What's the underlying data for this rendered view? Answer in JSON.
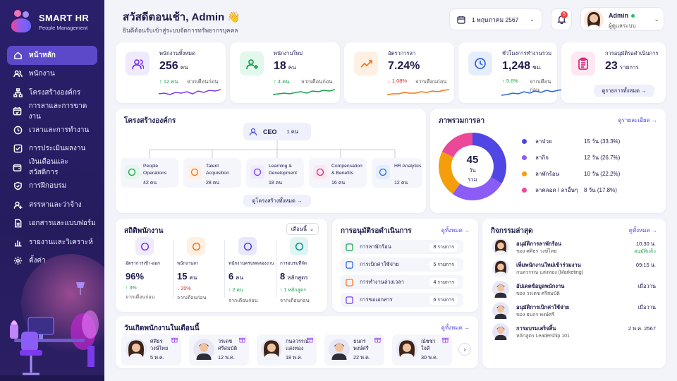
{
  "brand": {
    "name": "SMART HR",
    "subtitle": "People Management"
  },
  "nav": [
    {
      "label": "หน้าหลัก",
      "icon": "home-icon",
      "active": true
    },
    {
      "label": "พนักงาน",
      "icon": "users-icon"
    },
    {
      "label": "โครงสร้างองค์กร",
      "icon": "org-chart-icon"
    },
    {
      "label": "การลาและการขาดงาน",
      "icon": "calendar-check-icon"
    },
    {
      "label": "เวลาและการทำงาน",
      "icon": "clock-icon"
    },
    {
      "label": "การประเมินผลงาน",
      "icon": "checkbox-icon"
    },
    {
      "label": "เงินเดือนและสวัสดิการ",
      "icon": "wallet-icon"
    },
    {
      "label": "การฝึกอบรม",
      "icon": "shield-icon"
    },
    {
      "label": "สรรหาและว่าจ้าง",
      "icon": "recruit-icon"
    },
    {
      "label": "เอกสารและแบบฟอร์ม",
      "icon": "document-icon"
    },
    {
      "label": "รายงานและวิเคราะห์",
      "icon": "bar-chart-icon"
    },
    {
      "label": "ตั้งค่า",
      "icon": "gear-icon"
    }
  ],
  "header": {
    "greeting": "สวัสดีตอนเช้า, Admin 👋",
    "subtitle": "ยินดีต้อนรับเข้าสู่ระบบจัดการทรัพยากรบุคคล",
    "date": "1 พฤษภาคม 2567",
    "notif_count": "5",
    "user_name": "Admin",
    "user_role": "ผู้ดูแลระบบ"
  },
  "stats": [
    {
      "title": "พนักงานทั้งหมด",
      "value": "256",
      "unit": "คน",
      "change": "↑ 12 คน",
      "trend": "up",
      "compare": "จากเดือนก่อน",
      "color": "#7c3aed",
      "bg": "#efeafe",
      "icon": "users-icon"
    },
    {
      "title": "พนักงานใหม่",
      "value": "18",
      "unit": "คน",
      "change": "↑ 4 คน",
      "trend": "up",
      "compare": "จากเดือนก่อน",
      "color": "#16a34a",
      "bg": "#e3f7ec",
      "icon": "user-plus-icon"
    },
    {
      "title": "อัตราการลา",
      "value": "7.24%",
      "unit": "",
      "change": "↓ 1.08%",
      "trend": "down",
      "compare": "จากเดือนก่อน",
      "color": "#f97316",
      "bg": "#fff0e3",
      "icon": "trend-icon"
    },
    {
      "title": "ชั่วโมงการทำงานรวม",
      "value": "1,248",
      "unit": "ชม.",
      "change": "↑ 5.6%",
      "trend": "up",
      "compare": "จากเดือนก่อน",
      "color": "#2563eb",
      "bg": "#e6eefe",
      "icon": "clock-icon"
    },
    {
      "title": "การอนุมัติรอดำเนินการ",
      "value": "23",
      "unit": "รายการ",
      "change": "",
      "trend": "",
      "compare": "",
      "color": "#db2777",
      "bg": "#fde7f1",
      "icon": "clipboard-icon",
      "button": "ดูรายการทั้งหมด →"
    }
  ],
  "org": {
    "title": "โครงสร้างองค์กร",
    "ceo": {
      "label": "CEO",
      "count": "1 คน"
    },
    "depts": [
      {
        "name": "People Operations",
        "count": "42 คน",
        "color": "#16a34a",
        "bg": "#e3f7ec"
      },
      {
        "name": "Talent Acquisition",
        "count": "28 คน",
        "color": "#f97316",
        "bg": "#fff0e3"
      },
      {
        "name": "Learning & Development",
        "count": "18 คน",
        "color": "#7c3aed",
        "bg": "#efeafe"
      },
      {
        "name": "Compensation & Benefits",
        "count": "16 คน",
        "color": "#db2777",
        "bg": "#fde7f1"
      },
      {
        "name": "HR Analytics",
        "count": "12 คน",
        "color": "#2563eb",
        "bg": "#e6eefe"
      }
    ],
    "button": "ดูโครงสร้างทั้งหมด →"
  },
  "leave": {
    "title": "ภาพรวมการลา",
    "link": "ดูรายละเอียด →",
    "total": "45",
    "total_unit": "วัน",
    "total_label": "รวม",
    "chart_data": {
      "type": "pie",
      "donut": true,
      "categories": [
        "ลาป่วย",
        "ลากิจ",
        "ลาพักร้อน",
        "ลาคลอด / ลาอื่นๆ"
      ],
      "values": [
        15,
        12,
        10,
        8
      ],
      "percent": [
        33.3,
        26.7,
        22.2,
        17.8
      ],
      "colors": [
        "#4f46e5",
        "#8b5cf6",
        "#f59e0b",
        "#ec4899"
      ],
      "labels": [
        "15 วัน (33.3%)",
        "12 วัน (26.7%)",
        "10 วัน (22.2%)",
        "8 วัน (17.8%)"
      ]
    }
  },
  "empstats": {
    "title": "สถิติพนักงาน",
    "period": "เดือนนี้",
    "items": [
      {
        "title": "อัตราการเข้า-ออก",
        "value": "96%",
        "unit": "",
        "change": "↑ 3%",
        "trend": "up",
        "compare": "จากเดือนก่อน",
        "color": "#7c3aed",
        "bg": "#efeafe"
      },
      {
        "title": "พนักงานลา",
        "value": "15",
        "unit": "คน",
        "change": "↓ 20%",
        "trend": "down",
        "compare": "จากเดือนก่อน",
        "color": "#f97316",
        "bg": "#fff0e3"
      },
      {
        "title": "พนักงานครบทดลองงาน",
        "value": "6",
        "unit": "คน",
        "change": "↑ 2 คน",
        "trend": "up",
        "compare": "จากเดือนก่อน",
        "color": "#4f46e5",
        "bg": "#e8e8fb"
      },
      {
        "title": "การอบรมที่จัด",
        "value": "8",
        "unit": "หลักสูตร",
        "change": "↑ 1 หลักสูตร",
        "trend": "up",
        "compare": "จากเดือนก่อน",
        "color": "#0d9488",
        "bg": "#dff5f2"
      }
    ]
  },
  "approvals": {
    "title": "การอนุมัติรอดำเนินการ",
    "link": "ดูทั้งหมด →",
    "items": [
      {
        "label": "การลาพักร้อน",
        "count": "8 รายการ",
        "color": "#16a34a"
      },
      {
        "label": "การเบิกค่าใช้จ่าย",
        "count": "5 รายการ",
        "color": "#2563eb"
      },
      {
        "label": "การทำงานล่วงเวลา",
        "count": "4 รายการ",
        "color": "#f97316"
      },
      {
        "label": "การขอเอกสาร",
        "count": "6 รายการ",
        "color": "#7c3aed"
      }
    ]
  },
  "activity": {
    "title": "กิจกรรมล่าสุด",
    "link": "ดูทั้งหมด →",
    "items": [
      {
        "title": "อนุมัติการลาพักร้อน",
        "sub": "ของ ศศิธร วงษ์ไทย",
        "time": "10:30 น.",
        "status": "อนุมัติแล้ว",
        "gender": "f"
      },
      {
        "title": "เพิ่มพนักงานใหม่เข้าร่วมงาน",
        "sub": "กนลวรรณ แสงทอง (Marketing)",
        "time": "09:15 น.",
        "status": "",
        "gender": "f"
      },
      {
        "title": "อัปเดตข้อมูลพนักงาน",
        "sub": "ของ วรเดช ศรีสมบัติ",
        "time": "เมื่อวาน",
        "status": "",
        "gender": "m"
      },
      {
        "title": "อนุมัติการเบิกค่าใช้จ่าย",
        "sub": "ของ ธนกร พงษ์ศรี",
        "time": "เมื่อวาน",
        "status": "",
        "gender": "m"
      },
      {
        "title": "การอบรมเสร็จสิ้น",
        "sub": "หลักสูตร Leadership 101",
        "time": "2 พ.ค. 2567",
        "status": "",
        "gender": "m"
      }
    ]
  },
  "birthdays": {
    "title": "วันเกิดพนักงานในเดือนนี้",
    "link": "ดูทั้งหมด →",
    "items": [
      {
        "name": "ศศิธร\nวงษ์ไทย",
        "date": "5 พ.ค.",
        "gender": "f"
      },
      {
        "name": "วรเดช\nศรีสมบัติ",
        "date": "12 พ.ค.",
        "gender": "m"
      },
      {
        "name": "กนลวรรณ\nแสงทอง",
        "date": "18 พ.ค.",
        "gender": "f"
      },
      {
        "name": "ธนกร\nพงษ์ศรี",
        "date": "22 พ.ค.",
        "gender": "m"
      },
      {
        "name": "ณัชชา\nใจดี",
        "date": "30 พ.ค.",
        "gender": "f"
      }
    ]
  }
}
